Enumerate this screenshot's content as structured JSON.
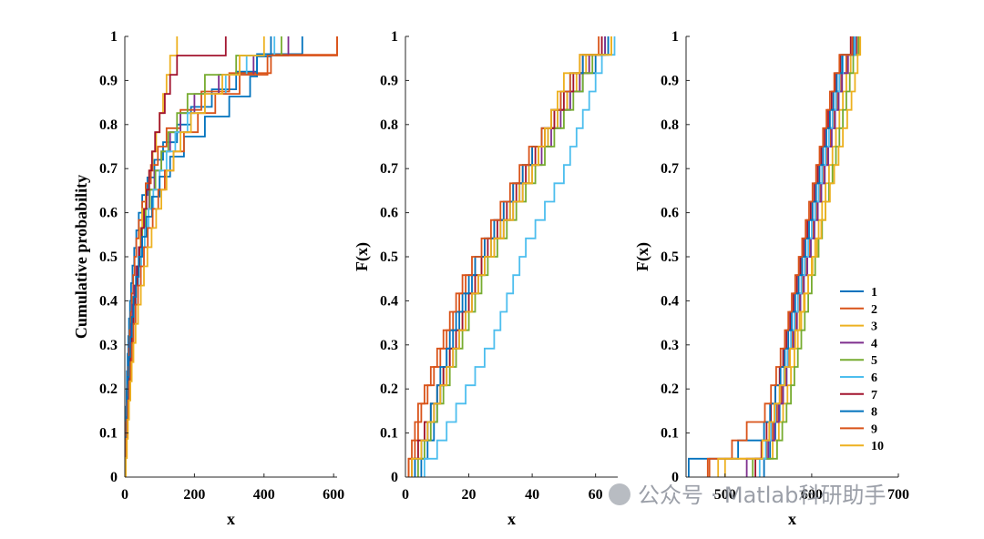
{
  "chart_data": {
    "type": "line",
    "subtype": "empirical-cdf-step",
    "legend": {
      "placement": "lower-right of third panel",
      "entries": [
        "1",
        "2",
        "3",
        "4",
        "5",
        "6",
        "7",
        "8",
        "9",
        "10"
      ]
    },
    "series_colors": [
      "#0072BD",
      "#D95319",
      "#EDB120",
      "#7E2F8E",
      "#77AC30",
      "#4DBEEE",
      "#A2142F",
      "#0072BD",
      "#D95319",
      "#EDB120"
    ],
    "panels": [
      {
        "name": "left",
        "ylabel": "Cumulative probability",
        "xlabel": "x",
        "xlim": [
          0,
          610
        ],
        "ylim": [
          0,
          1
        ],
        "xticks": [
          0,
          200,
          400,
          600
        ],
        "xtick_labels": [
          "0",
          "200",
          "400",
          "600"
        ],
        "yticks": [
          0,
          0.1,
          0.2,
          0.3,
          0.4,
          0.5,
          0.6,
          0.7,
          0.8,
          0.9,
          1
        ],
        "ytick_labels": [
          "0",
          "0.1",
          "0.2",
          "0.3",
          "0.4",
          "0.5",
          "0.6",
          "0.7",
          "0.8",
          "0.9",
          "1"
        ],
        "series": [
          {
            "name": "1",
            "x": [
              1,
              2,
              3,
              4,
              5,
              6,
              8,
              10,
              12,
              15,
              18,
              22,
              27,
              33,
              40,
              50,
              65,
              85,
              110,
              150,
              190,
              250,
              320,
              380,
              510
            ]
          },
          {
            "name": "2",
            "x": [
              2,
              3,
              4,
              6,
              8,
              10,
              12,
              14,
              17,
              20,
              24,
              28,
              33,
              40,
              50,
              60,
              75,
              95,
              120,
              160,
              220,
              300,
              420,
              610
            ]
          },
          {
            "name": "3",
            "x": [
              3,
              5,
              7,
              9,
              12,
              15,
              18,
              22,
              26,
              30,
              35,
              40,
              45,
              50,
              60,
              70,
              80,
              90,
              100,
              110,
              120,
              130,
              150
            ]
          },
          {
            "name": "4",
            "x": [
              1,
              3,
              5,
              7,
              9,
              12,
              15,
              18,
              22,
              27,
              33,
              40,
              48,
              58,
              70,
              85,
              105,
              130,
              160,
              200,
              270,
              370,
              470
            ]
          },
          {
            "name": "5",
            "x": [
              2,
              4,
              6,
              8,
              11,
              14,
              17,
              21,
              25,
              30,
              36,
              43,
              50,
              60,
              72,
              88,
              105,
              125,
              150,
              180,
              230,
              320,
              450
            ]
          },
          {
            "name": "6",
            "x": [
              1,
              3,
              5,
              7,
              10,
              13,
              17,
              21,
              26,
              32,
              39,
              47,
              57,
              68,
              82,
              100,
              120,
              145,
              180,
              230,
              290,
              350,
              430
            ]
          },
          {
            "name": "7",
            "x": [
              2,
              4,
              6,
              8,
              10,
              13,
              16,
              20,
              25,
              30,
              36,
              42,
              48,
              55,
              62,
              70,
              78,
              87,
              100,
              115,
              130,
              150,
              290
            ]
          },
          {
            "name": "8",
            "x": [
              1,
              3,
              5,
              7,
              9,
              12,
              16,
              20,
              25,
              32,
              40,
              50,
              62,
              78,
              100,
              130,
              170,
              230,
              300,
              360,
              380,
              420
            ]
          },
          {
            "name": "9",
            "x": [
              2,
              4,
              6,
              9,
              12,
              16,
              20,
              25,
              31,
              38,
              46,
              55,
              66,
              80,
              96,
              115,
              140,
              170,
              210,
              260,
              330,
              410,
              610
            ]
          },
          {
            "name": "10",
            "x": [
              3,
              6,
              9,
              12,
              16,
              20,
              25,
              31,
              38,
              46,
              55,
              65,
              77,
              90,
              105,
              120,
              140,
              160,
              190,
              230,
              280,
              330,
              400
            ]
          }
        ]
      },
      {
        "name": "middle",
        "ylabel": "F(x)",
        "xlabel": "x",
        "xlim": [
          0,
          67
        ],
        "ylim": [
          0,
          1
        ],
        "xticks": [
          0,
          20,
          40,
          60
        ],
        "xtick_labels": [
          "0",
          "20",
          "40",
          "60"
        ],
        "yticks": [
          0,
          0.1,
          0.2,
          0.3,
          0.4,
          0.5,
          0.6,
          0.7,
          0.8,
          0.9,
          1
        ],
        "ytick_labels": [
          "0",
          "0.1",
          "0.2",
          "0.3",
          "0.4",
          "0.5",
          "0.6",
          "0.7",
          "0.8",
          "0.9",
          "1"
        ],
        "series": [
          {
            "name": "1",
            "x": [
              5,
              7,
              9,
              10,
              11,
              12,
              13,
              15,
              17,
              19,
              21,
              24,
              27,
              30,
              33,
              36,
              39,
              42,
              45,
              48,
              52,
              56,
              60,
              63
            ]
          },
          {
            "name": "2",
            "x": [
              1,
              3,
              4,
              5,
              7,
              9,
              11,
              13,
              15,
              17,
              19,
              22,
              25,
              28,
              31,
              34,
              37,
              40,
              43,
              47,
              51,
              55,
              58,
              62
            ]
          },
          {
            "name": "3",
            "x": [
              2,
              4,
              6,
              8,
              10,
              12,
              14,
              16,
              18,
              20,
              22,
              24,
              27,
              30,
              33,
              36,
              39,
              42,
              45,
              48,
              51,
              54,
              57,
              65
            ]
          },
          {
            "name": "4",
            "x": [
              3,
              5,
              7,
              9,
              11,
              13,
              15,
              17,
              19,
              21,
              23,
              25,
              28,
              31,
              34,
              37,
              40,
              43,
              46,
              49,
              52,
              55,
              58,
              63
            ]
          },
          {
            "name": "5",
            "x": [
              4,
              6,
              8,
              10,
              12,
              14,
              16,
              18,
              20,
              22,
              24,
              26,
              29,
              32,
              35,
              38,
              41,
              44,
              47,
              50,
              53,
              56,
              59,
              64
            ]
          },
          {
            "name": "6",
            "x": [
              6,
              10,
              13,
              16,
              19,
              22,
              25,
              28,
              30,
              32,
              34,
              36,
              38,
              41,
              44,
              47,
              50,
              52,
              54,
              56,
              58,
              60,
              62,
              66
            ]
          },
          {
            "name": "7",
            "x": [
              2,
              4,
              6,
              8,
              10,
              12,
              14,
              16,
              18,
              20,
              22,
              24,
              26,
              29,
              32,
              35,
              38,
              41,
              44,
              47,
              50,
              53,
              56,
              62
            ]
          },
          {
            "name": "8",
            "x": [
              3,
              5,
              7,
              8,
              10,
              11,
              13,
              14,
              16,
              18,
              20,
              22,
              25,
              28,
              31,
              34,
              37,
              40,
              43,
              46,
              49,
              52,
              56,
              64
            ]
          },
          {
            "name": "9",
            "x": [
              1,
              2,
              3,
              4,
              6,
              8,
              10,
              12,
              14,
              16,
              18,
              21,
              24,
              27,
              30,
              33,
              36,
              39,
              43,
              46,
              49,
              52,
              55,
              61
            ]
          },
          {
            "name": "10",
            "x": [
              2,
              5,
              7,
              9,
              11,
              13,
              15,
              17,
              19,
              21,
              23,
              25,
              28,
              31,
              34,
              37,
              40,
              42,
              44,
              46,
              48,
              50,
              55,
              65
            ]
          }
        ]
      },
      {
        "name": "right",
        "ylabel": "F(x)",
        "xlabel": "x",
        "xlim": [
          455,
          700
        ],
        "ylim": [
          0,
          1
        ],
        "xticks": [
          500,
          600,
          700
        ],
        "xtick_labels": [
          "500",
          "600",
          "700"
        ],
        "yticks": [
          0,
          0.1,
          0.2,
          0.3,
          0.4,
          0.5,
          0.6,
          0.7,
          0.8,
          0.9,
          1
        ],
        "ytick_labels": [
          "0",
          "0.1",
          "0.2",
          "0.3",
          "0.4",
          "0.5",
          "0.6",
          "0.7",
          "0.8",
          "0.9",
          "1"
        ],
        "series": [
          {
            "name": "1",
            "x": [
              545,
              552,
              558,
              563,
              567,
              571,
              575,
              579,
              583,
              587,
              591,
              595,
              599,
              603,
              607,
              611,
              615,
              619,
              623,
              627,
              631,
              635,
              640,
              650
            ]
          },
          {
            "name": "2",
            "x": [
              482,
              548,
              555,
              560,
              565,
              570,
              574,
              578,
              582,
              586,
              590,
              594,
              598,
              602,
              606,
              610,
              614,
              618,
              622,
              626,
              630,
              634,
              640,
              652
            ]
          },
          {
            "name": "3",
            "x": [
              500,
              555,
              562,
              567,
              572,
              576,
              580,
              584,
              588,
              592,
              596,
              600,
              604,
              608,
              612,
              616,
              620,
              624,
              628,
              632,
              636,
              640,
              645,
              655
            ]
          },
          {
            "name": "4",
            "x": [
              525,
              550,
              557,
              562,
              567,
              571,
              575,
              579,
              583,
              587,
              591,
              595,
              599,
              603,
              607,
              611,
              615,
              619,
              623,
              627,
              631,
              635,
              642,
              651
            ]
          },
          {
            "name": "5",
            "x": [
              532,
              560,
              566,
              571,
              576,
              580,
              584,
              588,
              592,
              596,
              600,
              604,
              608,
              612,
              616,
              620,
              624,
              628,
              632,
              636,
              640,
              644,
              648,
              654
            ]
          },
          {
            "name": "6",
            "x": [
              540,
              547,
              553,
              558,
              563,
              568,
              572,
              576,
              580,
              584,
              588,
              592,
              596,
              600,
              604,
              608,
              612,
              616,
              620,
              624,
              628,
              632,
              636,
              650
            ]
          },
          {
            "name": "7",
            "x": [
              535,
              542,
              548,
              553,
              558,
              563,
              567,
              571,
              575,
              579,
              583,
              587,
              591,
              595,
              599,
              603,
              607,
              611,
              615,
              619,
              623,
              627,
              633,
              645
            ]
          },
          {
            "name": "8",
            "x": [
              458,
              515,
              545,
              552,
              558,
              564,
              569,
              573,
              577,
              581,
              585,
              589,
              593,
              597,
              601,
              605,
              609,
              613,
              617,
              621,
              625,
              629,
              635,
              648
            ]
          },
          {
            "name": "9",
            "x": [
              480,
              508,
              525,
              546,
              553,
              559,
              564,
              569,
              573,
              577,
              581,
              585,
              589,
              593,
              597,
              601,
              605,
              609,
              613,
              617,
              621,
              626,
              632,
              647
            ]
          },
          {
            "name": "10",
            "x": [
              492,
              543,
              551,
              557,
              563,
              569,
              575,
              581,
              586,
              591,
              596,
              601,
              606,
              611,
              616,
              621,
              626,
              631,
              636,
              641,
              646,
              650,
              653,
              656
            ]
          }
        ]
      }
    ]
  },
  "watermark": {
    "text": "公众号 · Matlab科研助手"
  }
}
